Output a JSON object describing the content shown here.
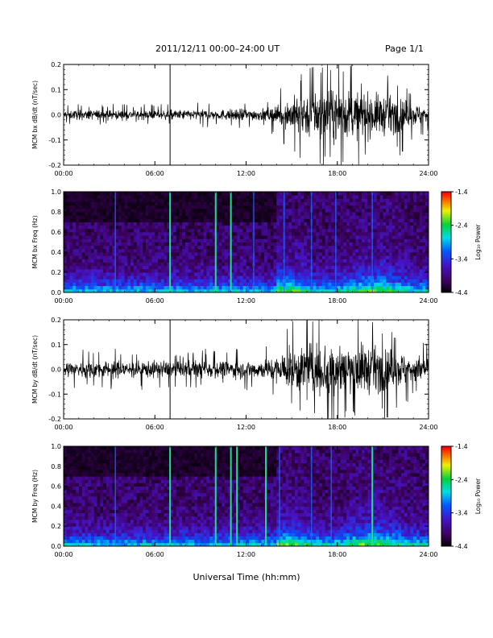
{
  "header": {
    "title": "2011/12/11  00:00–24:00 UT",
    "page": "Page 1/1"
  },
  "x_axis_label": "Universal Time (hh:mm)",
  "colorbar_label": "Log₁₀ Power",
  "chart_data": [
    {
      "type": "line",
      "name": "bx-timeseries",
      "ylabel": "MCM bx dB/dt (nT/sec)",
      "xlim": [
        0,
        24
      ],
      "ylim": [
        -0.2,
        0.2
      ],
      "x_ticks": [
        "00:00",
        "06:00",
        "12:00",
        "18:00",
        "24:00"
      ],
      "y_ticks": [
        "-0.2",
        "-0.1",
        "0.0",
        "0.1",
        "0.2"
      ],
      "marker_lines_hours": [
        7.0
      ],
      "envelope": {
        "hours": [
          0,
          2,
          4,
          6,
          8,
          10,
          12,
          13,
          14,
          14.5,
          15,
          16,
          17,
          18,
          19,
          20,
          21,
          22,
          23,
          24
        ],
        "amplitude": [
          0.03,
          0.035,
          0.03,
          0.03,
          0.035,
          0.035,
          0.04,
          0.04,
          0.06,
          0.09,
          0.12,
          0.15,
          0.18,
          0.17,
          0.16,
          0.15,
          0.14,
          0.12,
          0.08,
          0.06
        ]
      }
    },
    {
      "type": "heatmap",
      "name": "bx-spectrogram",
      "ylabel": "MCM bx Freq (Hz)",
      "xlim": [
        0,
        24
      ],
      "ylim": [
        0,
        1
      ],
      "x_ticks": [
        "00:00",
        "06:00",
        "12:00",
        "18:00",
        "24:00"
      ],
      "y_ticks": [
        "0.0",
        "0.2",
        "0.4",
        "0.6",
        "0.8",
        "1.0"
      ],
      "colorbar": {
        "min": -4.4,
        "max": -1.4,
        "ticks": [
          "-1.4",
          "-2.4",
          "-3.4",
          "-4.4"
        ]
      },
      "bright_lines_hours": [
        7.0,
        10.0,
        11.0
      ],
      "faint_lines_hours": [
        3.4,
        12.5,
        14.5,
        16.3,
        17.9,
        20.3
      ]
    },
    {
      "type": "line",
      "name": "by-timeseries",
      "ylabel": "MCM by dB/dt (nT/sec)",
      "xlim": [
        0,
        24
      ],
      "ylim": [
        -0.2,
        0.2
      ],
      "x_ticks": [
        "00:00",
        "06:00",
        "12:00",
        "18:00",
        "24:00"
      ],
      "y_ticks": [
        "-0.2",
        "-0.1",
        "0.0",
        "0.1",
        "0.2"
      ],
      "marker_lines_hours": [
        7.0
      ],
      "envelope": {
        "hours": [
          0,
          2,
          4,
          6,
          8,
          10,
          12,
          13,
          14,
          14.5,
          15,
          16,
          17,
          18,
          19,
          20,
          21,
          22,
          23,
          24
        ],
        "amplitude": [
          0.06,
          0.06,
          0.06,
          0.06,
          0.06,
          0.06,
          0.06,
          0.065,
          0.09,
          0.12,
          0.15,
          0.18,
          0.2,
          0.19,
          0.18,
          0.17,
          0.15,
          0.13,
          0.1,
          0.08
        ]
      }
    },
    {
      "type": "heatmap",
      "name": "by-spectrogram",
      "ylabel": "MCM by Freq (Hz)",
      "xlim": [
        0,
        24
      ],
      "ylim": [
        0,
        1
      ],
      "x_ticks": [
        "00:00",
        "06:00",
        "12:00",
        "18:00",
        "24:00"
      ],
      "y_ticks": [
        "0.0",
        "0.2",
        "0.4",
        "0.6",
        "0.8",
        "1.0"
      ],
      "colorbar": {
        "min": -4.4,
        "max": -1.4,
        "ticks": [
          "-1.4",
          "-2.4",
          "-3.4",
          "-4.4"
        ]
      },
      "bright_lines_hours": [
        7.0,
        10.0,
        11.0,
        11.4,
        13.3,
        20.3
      ],
      "faint_lines_hours": [
        3.4,
        14.2,
        16.3,
        17.6
      ]
    }
  ]
}
